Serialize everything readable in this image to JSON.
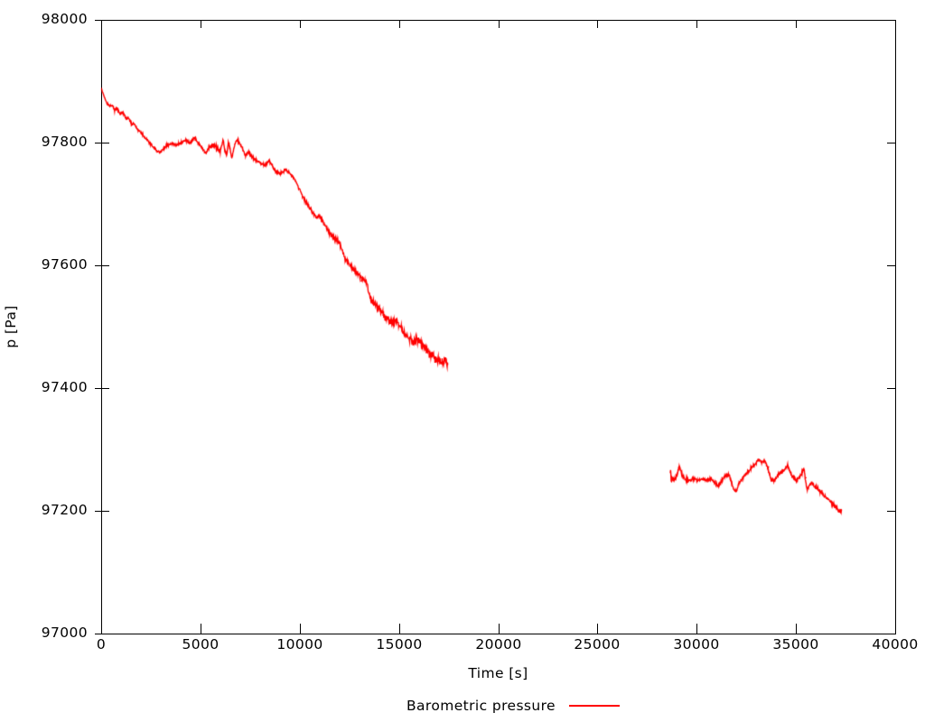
{
  "chart_data": {
    "type": "scatter",
    "title": "",
    "xlabel": "Time [s]",
    "ylabel": "p [Pa]",
    "xlim": [
      0,
      40000
    ],
    "ylim": [
      97000,
      98000
    ],
    "x_ticks": [
      0,
      5000,
      10000,
      15000,
      20000,
      25000,
      30000,
      35000,
      40000
    ],
    "y_ticks": [
      97000,
      97200,
      97400,
      97600,
      97800,
      98000
    ],
    "grid": false,
    "background": "#ffffff",
    "frame_color": "#000000",
    "legend_position": "below-center",
    "series": [
      {
        "name": "Barometric pressure",
        "color": "#ff0000",
        "segments": [
          {
            "anchors": [
              [
                0,
                97889
              ],
              [
                60,
                97882
              ],
              [
                170,
                97874
              ],
              [
                290,
                97863
              ],
              [
                450,
                97859
              ],
              [
                530,
                97862
              ],
              [
                670,
                97853
              ],
              [
                800,
                97856
              ],
              [
                960,
                97846
              ],
              [
                1100,
                97849
              ],
              [
                1270,
                97838
              ],
              [
                1370,
                97841
              ],
              [
                1550,
                97829
              ],
              [
                1640,
                97832
              ],
              [
                1820,
                97822
              ],
              [
                2000,
                97816
              ],
              [
                2180,
                97809
              ],
              [
                2410,
                97801
              ],
              [
                2590,
                97794
              ],
              [
                2780,
                97787
              ],
              [
                2960,
                97784
              ],
              [
                3140,
                97790
              ],
              [
                3320,
                97795
              ],
              [
                3550,
                97799
              ],
              [
                3780,
                97796
              ],
              [
                4010,
                97799
              ],
              [
                4240,
                97804
              ],
              [
                4470,
                97799
              ],
              [
                4690,
                97808
              ],
              [
                4870,
                97800
              ],
              [
                5050,
                97793
              ],
              [
                5280,
                97782
              ],
              [
                5460,
                97793
              ],
              [
                5640,
                97797
              ],
              [
                5820,
                97792
              ],
              [
                6000,
                97785
              ],
              [
                6140,
                97805
              ],
              [
                6230,
                97788
              ],
              [
                6320,
                97778
              ],
              [
                6410,
                97802
              ],
              [
                6500,
                97788
              ],
              [
                6590,
                97775
              ],
              [
                6680,
                97790
              ],
              [
                6820,
                97806
              ],
              [
                6960,
                97800
              ],
              [
                7100,
                97792
              ],
              [
                7280,
                97778
              ],
              [
                7420,
                97785
              ],
              [
                7640,
                97775
              ],
              [
                7960,
                97768
              ],
              [
                8240,
                97763
              ],
              [
                8460,
                97771
              ],
              [
                8780,
                97753
              ],
              [
                9010,
                97750
              ],
              [
                9330,
                97756
              ],
              [
                9600,
                97746
              ],
              [
                9830,
                97735
              ],
              [
                10150,
                97712
              ],
              [
                10380,
                97700
              ],
              [
                10600,
                97689
              ],
              [
                10830,
                97678
              ],
              [
                11060,
                97679
              ],
              [
                11290,
                97664
              ],
              [
                11600,
                97648
              ],
              [
                11880,
                97641
              ],
              [
                12060,
                97632
              ],
              [
                12290,
                97611
              ],
              [
                12510,
                97601
              ],
              [
                12740,
                97592
              ],
              [
                12970,
                97585
              ],
              [
                13200,
                97577
              ],
              [
                13380,
                97572
              ],
              [
                13470,
                97555
              ],
              [
                13610,
                97544
              ],
              [
                13790,
                97536
              ],
              [
                14020,
                97529
              ],
              [
                14330,
                97514
              ],
              [
                14610,
                97507
              ],
              [
                14880,
                97511
              ],
              [
                15060,
                97499
              ],
              [
                15380,
                97486
              ],
              [
                15700,
                97475
              ],
              [
                15930,
                97480
              ],
              [
                16290,
                97464
              ],
              [
                16610,
                97455
              ],
              [
                16880,
                97447
              ],
              [
                17110,
                97441
              ],
              [
                17290,
                97445
              ],
              [
                17470,
                97439
              ]
            ],
            "noise_profile": [
              [
                0,
                2.2
              ],
              [
                3000,
                2.5
              ],
              [
                6000,
                3
              ],
              [
                7400,
                2.5
              ],
              [
                10000,
                3
              ],
              [
                12000,
                3.5
              ],
              [
                13300,
                4
              ],
              [
                13600,
                6.5
              ],
              [
                14600,
                7
              ],
              [
                15600,
                7.5
              ],
              [
                16500,
                8.5
              ],
              [
                17470,
                9.5
              ]
            ]
          },
          {
            "anchors": [
              [
                28670,
                97258
              ],
              [
                28690,
                97268
              ],
              [
                28720,
                97248
              ],
              [
                28800,
                97253
              ],
              [
                28900,
                97250
              ],
              [
                29000,
                97257
              ],
              [
                29120,
                97272
              ],
              [
                29220,
                97263
              ],
              [
                29330,
                97255
              ],
              [
                29450,
                97250
              ],
              [
                29630,
                97249
              ],
              [
                29850,
                97252
              ],
              [
                30100,
                97250
              ],
              [
                30300,
                97252
              ],
              [
                30500,
                97251
              ],
              [
                30720,
                97252
              ],
              [
                30850,
                97248
              ],
              [
                31080,
                97240
              ],
              [
                31220,
                97246
              ],
              [
                31400,
                97256
              ],
              [
                31630,
                97259
              ],
              [
                31850,
                97236
              ],
              [
                31990,
                97231
              ],
              [
                32100,
                97242
              ],
              [
                32220,
                97250
              ],
              [
                32450,
                97259
              ],
              [
                32600,
                97264
              ],
              [
                32810,
                97271
              ],
              [
                33000,
                97279
              ],
              [
                33150,
                97283
              ],
              [
                33300,
                97279
              ],
              [
                33450,
                97282
              ],
              [
                33600,
                97268
              ],
              [
                33720,
                97252
              ],
              [
                33900,
                97248
              ],
              [
                34020,
                97254
              ],
              [
                34130,
                97259
              ],
              [
                34360,
                97265
              ],
              [
                34580,
                97274
              ],
              [
                34700,
                97265
              ],
              [
                34810,
                97255
              ],
              [
                35040,
                97249
              ],
              [
                35270,
                97260
              ],
              [
                35400,
                97269
              ],
              [
                35480,
                97250
              ],
              [
                35560,
                97235
              ],
              [
                35680,
                97242
              ],
              [
                35770,
                97246
              ],
              [
                35880,
                97242
              ],
              [
                36000,
                97238
              ],
              [
                36180,
                97233
              ],
              [
                36400,
                97226
              ],
              [
                36630,
                97218
              ],
              [
                36860,
                97211
              ],
              [
                37090,
                97203
              ],
              [
                37200,
                97198
              ],
              [
                37320,
                97200
              ]
            ],
            "noise_profile": [
              [
                28670,
                5.5
              ],
              [
                28760,
                3.2
              ],
              [
                33000,
                3.0
              ],
              [
                37320,
                3.4
              ]
            ]
          }
        ]
      }
    ]
  }
}
